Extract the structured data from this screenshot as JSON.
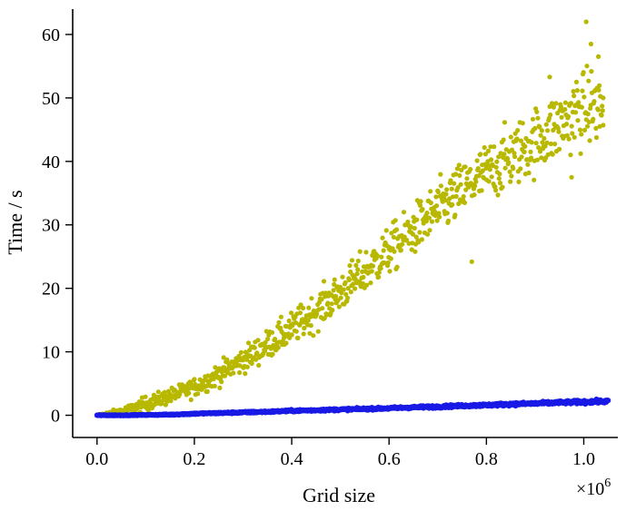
{
  "chart_data": {
    "type": "scatter",
    "title": "",
    "xlabel": "Grid size",
    "ylabel": "Time / s",
    "x_multiplier_base": "×10",
    "x_multiplier_exp": "6",
    "xlim": [
      -0.05,
      1.07
    ],
    "ylim": [
      -3.5,
      64
    ],
    "grid": false,
    "legend": "none",
    "x_ticks": [
      0.0,
      0.2,
      0.4,
      0.6,
      0.8,
      1.0
    ],
    "x_tick_labels": [
      "0.0",
      "0.2",
      "0.4",
      "0.6",
      "0.8",
      "1.0"
    ],
    "y_ticks": [
      0,
      10,
      20,
      30,
      40,
      50,
      60
    ],
    "y_tick_labels": [
      "0",
      "10",
      "20",
      "30",
      "40",
      "50",
      "60"
    ],
    "series": [
      {
        "color": "#b8b800",
        "x": [
          0.0,
          0.02,
          0.04,
          0.06,
          0.08,
          0.1,
          0.12,
          0.14,
          0.16,
          0.18,
          0.2,
          0.22,
          0.24,
          0.26,
          0.28,
          0.3,
          0.32,
          0.34,
          0.36,
          0.38,
          0.4,
          0.42,
          0.44,
          0.46,
          0.48,
          0.5,
          0.52,
          0.54,
          0.56,
          0.58,
          0.6,
          0.62,
          0.64,
          0.66,
          0.68,
          0.7,
          0.72,
          0.74,
          0.76,
          0.78,
          0.8,
          0.82,
          0.84,
          0.86,
          0.88,
          0.9,
          0.92,
          0.94,
          0.96,
          0.98,
          1.0,
          1.02,
          1.04
        ],
        "y": [
          0.0,
          0.2,
          0.5,
          0.8,
          1.3,
          1.8,
          2.3,
          2.8,
          3.3,
          3.8,
          4.4,
          5.2,
          6.0,
          6.9,
          7.8,
          8.7,
          9.6,
          10.6,
          11.6,
          12.6,
          13.6,
          14.7,
          15.8,
          17.0,
          18.2,
          19.4,
          20.7,
          22.0,
          23.3,
          24.6,
          25.9,
          27.2,
          28.5,
          29.8,
          31.1,
          32.4,
          33.6,
          34.8,
          36.0,
          37.1,
          38.2,
          39.2,
          40.2,
          41.2,
          42.2,
          43.2,
          44.2,
          45.2,
          46.2,
          47.2,
          48.2,
          48.8,
          48.0
        ],
        "spread": [
          0.1,
          0.3,
          0.4,
          0.6,
          0.8,
          1.0,
          1.0,
          1.1,
          1.1,
          1.2,
          1.3,
          1.4,
          1.5,
          1.6,
          1.7,
          1.8,
          1.9,
          2.0,
          2.1,
          2.2,
          2.3,
          2.4,
          2.5,
          2.6,
          2.7,
          2.8,
          2.9,
          3.0,
          3.1,
          3.2,
          3.3,
          3.4,
          3.5,
          3.6,
          3.7,
          3.8,
          3.9,
          4.0,
          4.0,
          4.1,
          4.2,
          4.3,
          4.4,
          4.5,
          4.6,
          4.7,
          4.8,
          4.9,
          5.0,
          5.1,
          5.2,
          5.3,
          5.5
        ],
        "outliers": [
          [
            1.005,
            62.0
          ],
          [
            1.015,
            58.5
          ],
          [
            1.03,
            56.5
          ],
          [
            0.93,
            53.3
          ],
          [
            0.985,
            52.5
          ],
          [
            1.04,
            50.0
          ],
          [
            0.975,
            37.5
          ],
          [
            0.6,
            26.2
          ],
          [
            0.77,
            24.2
          ]
        ]
      },
      {
        "color": "#1a1ae6",
        "x": [
          0.0,
          0.05,
          0.1,
          0.15,
          0.2,
          0.25,
          0.3,
          0.35,
          0.4,
          0.45,
          0.5,
          0.55,
          0.6,
          0.65,
          0.7,
          0.75,
          0.8,
          0.85,
          0.9,
          0.95,
          1.0,
          1.05
        ],
        "y": [
          0.0,
          0.0,
          0.05,
          0.1,
          0.25,
          0.35,
          0.45,
          0.55,
          0.7,
          0.8,
          0.9,
          1.0,
          1.1,
          1.25,
          1.35,
          1.5,
          1.6,
          1.75,
          1.85,
          2.0,
          2.1,
          2.2
        ],
        "spread": [
          0.05,
          0.05,
          0.05,
          0.08,
          0.1,
          0.1,
          0.12,
          0.12,
          0.14,
          0.14,
          0.15,
          0.15,
          0.16,
          0.16,
          0.18,
          0.18,
          0.2,
          0.2,
          0.22,
          0.22,
          0.24,
          0.24
        ]
      }
    ]
  }
}
